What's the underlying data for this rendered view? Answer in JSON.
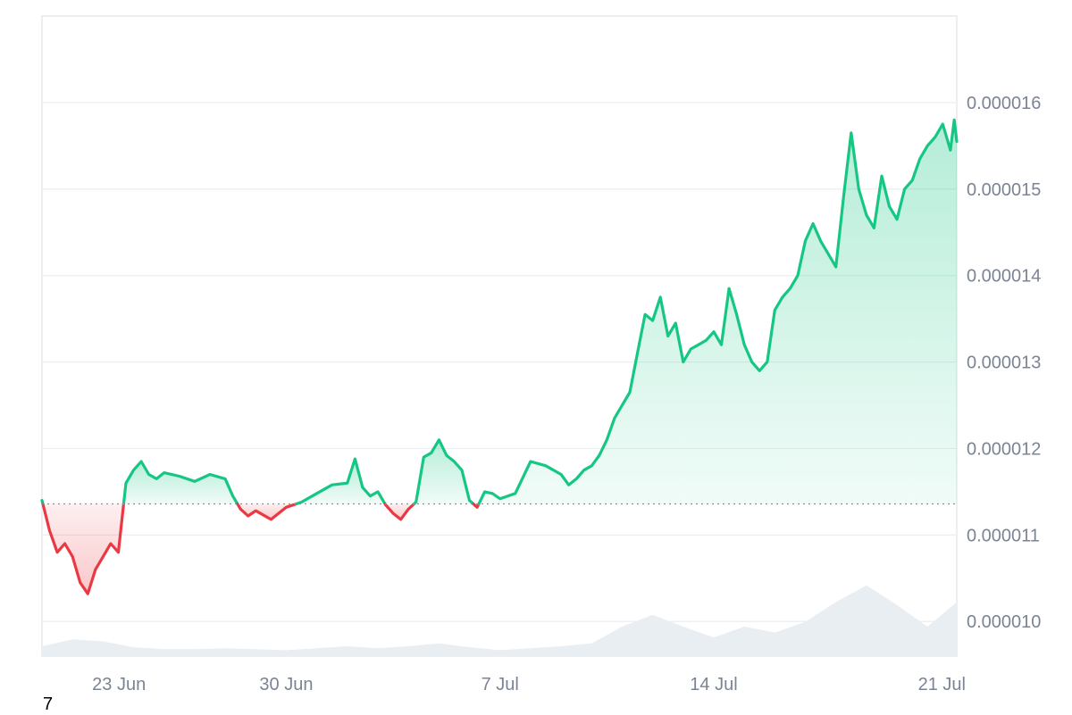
{
  "chart_data": {
    "type": "line",
    "title": "",
    "xlabel": "",
    "ylabel": "",
    "x_ticks": [
      "23 Jun",
      "30 Jun",
      "7 Jul",
      "14 Jul",
      "21 Jul"
    ],
    "y_ticks": [
      "0.000016",
      "0.000015",
      "0.000014",
      "0.000013",
      "0.000012",
      "0.000011",
      "0.000010"
    ],
    "ylim": [
      9.6e-06,
      1.7e-05
    ],
    "xlim": [
      "2024-06-22",
      "2024-07-21"
    ],
    "baseline": 1.136e-05,
    "grid": true,
    "up_color": "#16c784",
    "down_color": "#ea3943",
    "volume_color": "#e9eef3",
    "series": [
      {
        "points": [
          [
            "2024-06-22",
            1.14e-05
          ],
          [
            "2024-06-22T06:00",
            1.105e-05
          ],
          [
            "2024-06-22T12:00",
            1.08e-05
          ],
          [
            "2024-06-22T18:00",
            1.09e-05
          ],
          [
            "2024-06-23",
            1.075e-05
          ],
          [
            "2024-06-23T06:00",
            1.045e-05
          ],
          [
            "2024-06-23T12:00",
            1.032e-05
          ],
          [
            "2024-06-23T18:00",
            1.06e-05
          ],
          [
            "2024-06-24",
            1.075e-05
          ],
          [
            "2024-06-24T06:00",
            1.09e-05
          ],
          [
            "2024-06-24T12:00",
            1.08e-05
          ],
          [
            "2024-06-24T18:00",
            1.16e-05
          ],
          [
            "2024-06-25",
            1.175e-05
          ],
          [
            "2024-06-25T06:00",
            1.185e-05
          ],
          [
            "2024-06-25T12:00",
            1.17e-05
          ],
          [
            "2024-06-25T18:00",
            1.165e-05
          ],
          [
            "2024-06-26",
            1.172e-05
          ],
          [
            "2024-06-26T12:00",
            1.168e-05
          ],
          [
            "2024-06-27",
            1.162e-05
          ],
          [
            "2024-06-27T12:00",
            1.17e-05
          ],
          [
            "2024-06-28",
            1.165e-05
          ],
          [
            "2024-06-28T06:00",
            1.145e-05
          ],
          [
            "2024-06-28T12:00",
            1.13e-05
          ],
          [
            "2024-06-28T18:00",
            1.122e-05
          ],
          [
            "2024-06-29",
            1.128e-05
          ],
          [
            "2024-06-29T12:00",
            1.118e-05
          ],
          [
            "2024-06-30",
            1.132e-05
          ],
          [
            "2024-06-30T12:00",
            1.138e-05
          ],
          [
            "2024-07-01",
            1.148e-05
          ],
          [
            "2024-07-01T12:00",
            1.158e-05
          ],
          [
            "2024-07-02",
            1.16e-05
          ],
          [
            "2024-07-02T06:00",
            1.188e-05
          ],
          [
            "2024-07-02T12:00",
            1.155e-05
          ],
          [
            "2024-07-02T18:00",
            1.145e-05
          ],
          [
            "2024-07-03",
            1.15e-05
          ],
          [
            "2024-07-03T06:00",
            1.135e-05
          ],
          [
            "2024-07-03T12:00",
            1.125e-05
          ],
          [
            "2024-07-03T18:00",
            1.118e-05
          ],
          [
            "2024-07-04",
            1.13e-05
          ],
          [
            "2024-07-04T06:00",
            1.138e-05
          ],
          [
            "2024-07-04T12:00",
            1.19e-05
          ],
          [
            "2024-07-04T18:00",
            1.195e-05
          ],
          [
            "2024-07-05",
            1.21e-05
          ],
          [
            "2024-07-05T06:00",
            1.192e-05
          ],
          [
            "2024-07-05T12:00",
            1.185e-05
          ],
          [
            "2024-07-05T18:00",
            1.175e-05
          ],
          [
            "2024-07-06",
            1.14e-05
          ],
          [
            "2024-07-06T06:00",
            1.132e-05
          ],
          [
            "2024-07-06T12:00",
            1.15e-05
          ],
          [
            "2024-07-06T18:00",
            1.148e-05
          ],
          [
            "2024-07-07",
            1.142e-05
          ],
          [
            "2024-07-07T12:00",
            1.148e-05
          ],
          [
            "2024-07-08",
            1.185e-05
          ],
          [
            "2024-07-08T12:00",
            1.18e-05
          ],
          [
            "2024-07-09",
            1.17e-05
          ],
          [
            "2024-07-09T06:00",
            1.158e-05
          ],
          [
            "2024-07-09T12:00",
            1.165e-05
          ],
          [
            "2024-07-09T18:00",
            1.175e-05
          ],
          [
            "2024-07-10",
            1.18e-05
          ],
          [
            "2024-07-10T06:00",
            1.192e-05
          ],
          [
            "2024-07-10T12:00",
            1.21e-05
          ],
          [
            "2024-07-10T18:00",
            1.235e-05
          ],
          [
            "2024-07-11",
            1.25e-05
          ],
          [
            "2024-07-11T06:00",
            1.265e-05
          ],
          [
            "2024-07-11T12:00",
            1.31e-05
          ],
          [
            "2024-07-11T18:00",
            1.355e-05
          ],
          [
            "2024-07-12",
            1.348e-05
          ],
          [
            "2024-07-12T06:00",
            1.375e-05
          ],
          [
            "2024-07-12T12:00",
            1.33e-05
          ],
          [
            "2024-07-12T18:00",
            1.345e-05
          ],
          [
            "2024-07-13",
            1.3e-05
          ],
          [
            "2024-07-13T06:00",
            1.315e-05
          ],
          [
            "2024-07-13T12:00",
            1.32e-05
          ],
          [
            "2024-07-13T18:00",
            1.325e-05
          ],
          [
            "2024-07-14",
            1.335e-05
          ],
          [
            "2024-07-14T06:00",
            1.32e-05
          ],
          [
            "2024-07-14T12:00",
            1.385e-05
          ],
          [
            "2024-07-14T18:00",
            1.355e-05
          ],
          [
            "2024-07-15",
            1.32e-05
          ],
          [
            "2024-07-15T06:00",
            1.3e-05
          ],
          [
            "2024-07-15T12:00",
            1.29e-05
          ],
          [
            "2024-07-15T18:00",
            1.3e-05
          ],
          [
            "2024-07-16",
            1.36e-05
          ],
          [
            "2024-07-16T06:00",
            1.375e-05
          ],
          [
            "2024-07-16T12:00",
            1.385e-05
          ],
          [
            "2024-07-16T18:00",
            1.4e-05
          ],
          [
            "2024-07-17",
            1.44e-05
          ],
          [
            "2024-07-17T06:00",
            1.46e-05
          ],
          [
            "2024-07-17T12:00",
            1.44e-05
          ],
          [
            "2024-07-17T18:00",
            1.425e-05
          ],
          [
            "2024-07-18",
            1.41e-05
          ],
          [
            "2024-07-18T06:00",
            1.49e-05
          ],
          [
            "2024-07-18T12:00",
            1.565e-05
          ],
          [
            "2024-07-18T18:00",
            1.5e-05
          ],
          [
            "2024-07-19",
            1.47e-05
          ],
          [
            "2024-07-19T06:00",
            1.455e-05
          ],
          [
            "2024-07-19T12:00",
            1.515e-05
          ],
          [
            "2024-07-19T18:00",
            1.48e-05
          ],
          [
            "2024-07-20",
            1.465e-05
          ],
          [
            "2024-07-20T06:00",
            1.5e-05
          ],
          [
            "2024-07-20T12:00",
            1.51e-05
          ],
          [
            "2024-07-20T18:00",
            1.535e-05
          ],
          [
            "2024-07-21",
            1.55e-05
          ],
          [
            "2024-07-21T06:00",
            1.56e-05
          ],
          [
            "2024-07-21T12:00",
            1.575e-05
          ],
          [
            "2024-07-21T18:00",
            1.545e-05
          ],
          [
            "2024-07-21T21:00",
            1.58e-05
          ],
          [
            "2024-07-21T23:00",
            1.555e-05
          ]
        ]
      }
    ],
    "volume": [
      [
        "2024-06-22",
        0.1
      ],
      [
        "2024-06-23",
        0.17
      ],
      [
        "2024-06-24",
        0.15
      ],
      [
        "2024-06-25",
        0.09
      ],
      [
        "2024-06-26",
        0.07
      ],
      [
        "2024-06-27",
        0.07
      ],
      [
        "2024-06-28",
        0.08
      ],
      [
        "2024-06-29",
        0.07
      ],
      [
        "2024-06-30",
        0.06
      ],
      [
        "2024-07-01",
        0.08
      ],
      [
        "2024-07-02",
        0.1
      ],
      [
        "2024-07-03",
        0.08
      ],
      [
        "2024-07-04",
        0.1
      ],
      [
        "2024-07-05",
        0.13
      ],
      [
        "2024-07-06",
        0.09
      ],
      [
        "2024-07-07",
        0.06
      ],
      [
        "2024-07-08",
        0.08
      ],
      [
        "2024-07-09",
        0.1
      ],
      [
        "2024-07-10",
        0.13
      ],
      [
        "2024-07-11",
        0.3
      ],
      [
        "2024-07-12",
        0.42
      ],
      [
        "2024-07-13",
        0.3
      ],
      [
        "2024-07-14",
        0.19
      ],
      [
        "2024-07-15",
        0.3
      ],
      [
        "2024-07-16",
        0.24
      ],
      [
        "2024-07-17",
        0.35
      ],
      [
        "2024-07-18",
        0.55
      ],
      [
        "2024-07-19",
        0.72
      ],
      [
        "2024-07-20",
        0.52
      ],
      [
        "2024-07-21",
        0.3
      ],
      [
        "2024-07-21T23:00",
        0.55
      ]
    ]
  },
  "page_number": "7"
}
